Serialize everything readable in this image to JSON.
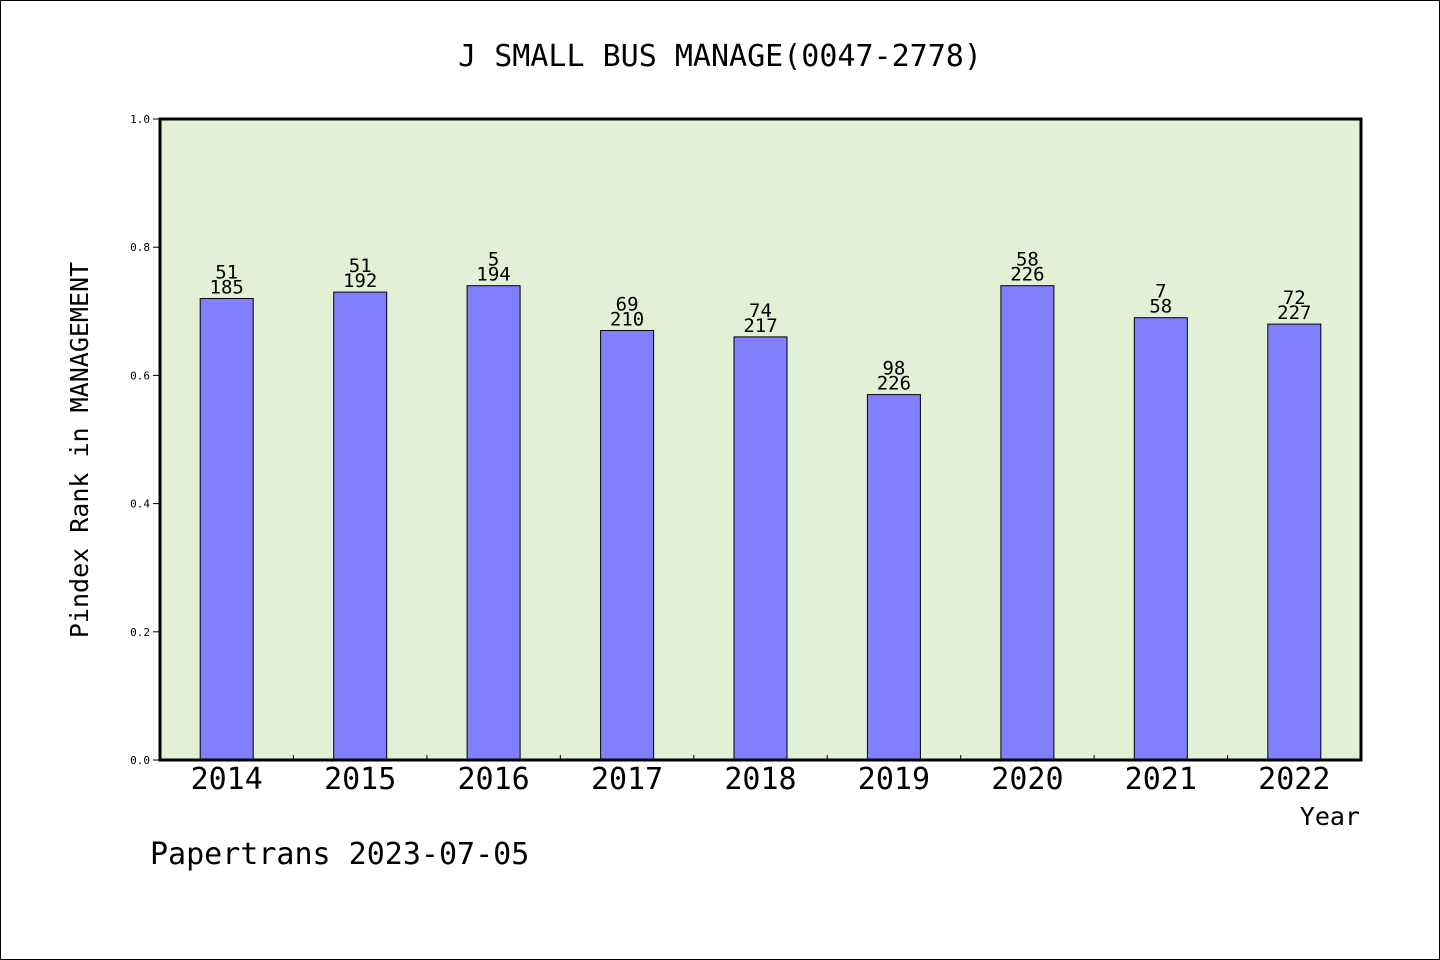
{
  "chart_data": {
    "type": "bar",
    "title": "J SMALL BUS MANAGE(0047-2778)",
    "ylabel": "Pindex Rank in MANAGEMENT",
    "xlabel": "Year",
    "footer": "Papertrans 2023-07-05",
    "ylim": [
      0,
      1.0
    ],
    "yticks": [
      "0.0",
      "0.2",
      "0.4",
      "0.6",
      "0.8",
      "1.0"
    ],
    "ytick_values": [
      0,
      0.2,
      0.4,
      0.6,
      0.8,
      1.0
    ],
    "categories": [
      "2014",
      "2015",
      "2016",
      "2017",
      "2018",
      "2019",
      "2020",
      "2021",
      "2022"
    ],
    "values": [
      0.72,
      0.73,
      0.74,
      0.67,
      0.66,
      0.57,
      0.74,
      0.69,
      0.68
    ],
    "label_top": [
      "51",
      "51",
      "5",
      "69",
      "74",
      "98",
      "58",
      "7",
      "72"
    ],
    "label_bottom": [
      "185",
      "192",
      "194",
      "210",
      "217",
      "226",
      "226",
      "58",
      "227"
    ],
    "grid": false,
    "legend": "none",
    "colors": {
      "bar": "#8080ff",
      "plot_bg": "#e2f0d6",
      "bar_stroke": "#000000"
    }
  }
}
